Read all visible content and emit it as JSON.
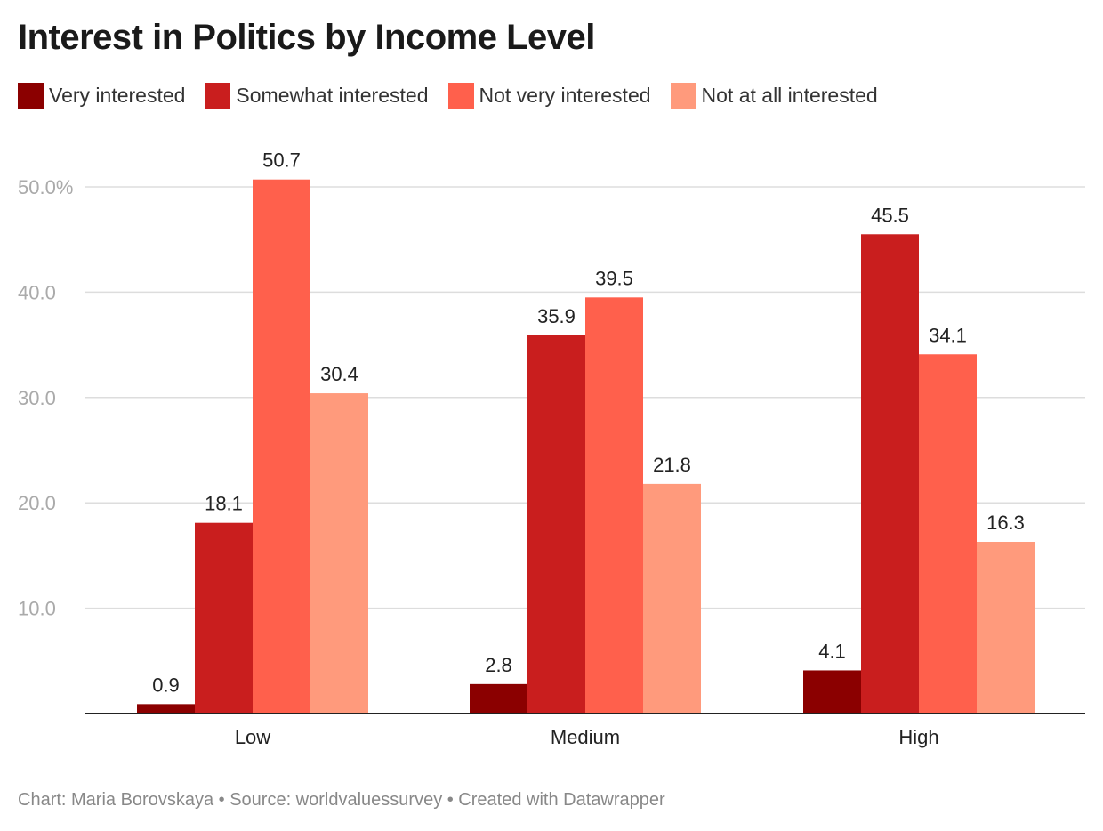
{
  "title": "Interest in Politics by Income Level",
  "footer": {
    "credit": "Chart: Maria Borovskaya • Source: worldvaluessurvey • Created with Datawrapper"
  },
  "chart_data": {
    "type": "bar",
    "title": "Interest in Politics by Income Level",
    "categories": [
      "Low",
      "Medium",
      "High"
    ],
    "series": [
      {
        "name": "Very interested",
        "color": "#8b0000",
        "values": [
          0.9,
          2.8,
          4.1
        ]
      },
      {
        "name": "Somewhat interested",
        "color": "#c91e1e",
        "values": [
          18.1,
          35.9,
          45.5
        ]
      },
      {
        "name": "Not very interested",
        "color": "#ff604c",
        "values": [
          50.7,
          39.5,
          34.1
        ]
      },
      {
        "name": "Not at all interested",
        "color": "#ff9a7c",
        "values": [
          30.4,
          21.8,
          16.3
        ]
      }
    ],
    "y_ticks": [
      {
        "value": 10,
        "label": "10.0"
      },
      {
        "value": 20,
        "label": "20.0"
      },
      {
        "value": 30,
        "label": "30.0"
      },
      {
        "value": 40,
        "label": "40.0"
      },
      {
        "value": 50,
        "label": "50.0%"
      }
    ],
    "ylim": [
      0,
      50
    ],
    "grid": true,
    "legend": "top-left",
    "data_labels": true
  }
}
